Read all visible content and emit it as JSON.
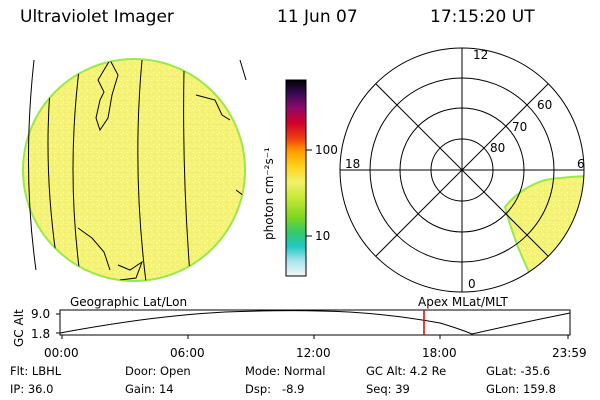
{
  "header": {
    "title": "Ultraviolet Imager",
    "date": "11 Jun 07",
    "time": "17:15:20 UT"
  },
  "colorbar": {
    "unit_label": "photon cm⁻²s⁻¹",
    "ticks": [
      "100",
      "10"
    ]
  },
  "polar_plot": {
    "mlt_labels": [
      "12",
      "18",
      "6",
      "0"
    ],
    "lat_labels": [
      "60",
      "70",
      "80"
    ]
  },
  "timeline": {
    "ylabel": "GC Alt",
    "y_ticks": [
      "9.0",
      "1.8"
    ],
    "left_caption": "Geographic Lat/Lon",
    "right_caption": "Apex MLat/MLT",
    "x_ticks": [
      "00:00",
      "06:00",
      "12:00",
      "18:00",
      "23:59"
    ],
    "current_marker_time": "17:15:20"
  },
  "status": {
    "row1": [
      {
        "key": "Flt:",
        "value": "LBHL"
      },
      {
        "key": "Door:",
        "value": "Open"
      },
      {
        "key": "Mode:",
        "value": "Normal"
      },
      {
        "key": "GC Alt:",
        "value": "4.2 Re"
      },
      {
        "key": "GLat:",
        "value": "-35.6"
      }
    ],
    "row2": [
      {
        "key": "IP:",
        "value": "36.0"
      },
      {
        "key": "Gain:",
        "value": "14"
      },
      {
        "key": "Dsp:",
        "value": "-8.9"
      },
      {
        "key": "Seq:",
        "value": "39"
      },
      {
        "key": "GLon:",
        "value": "159.8"
      }
    ]
  },
  "colors": {
    "emission_fill": "#f5f27a",
    "emission_edge": "#9be84a",
    "marker": "#e00000"
  }
}
